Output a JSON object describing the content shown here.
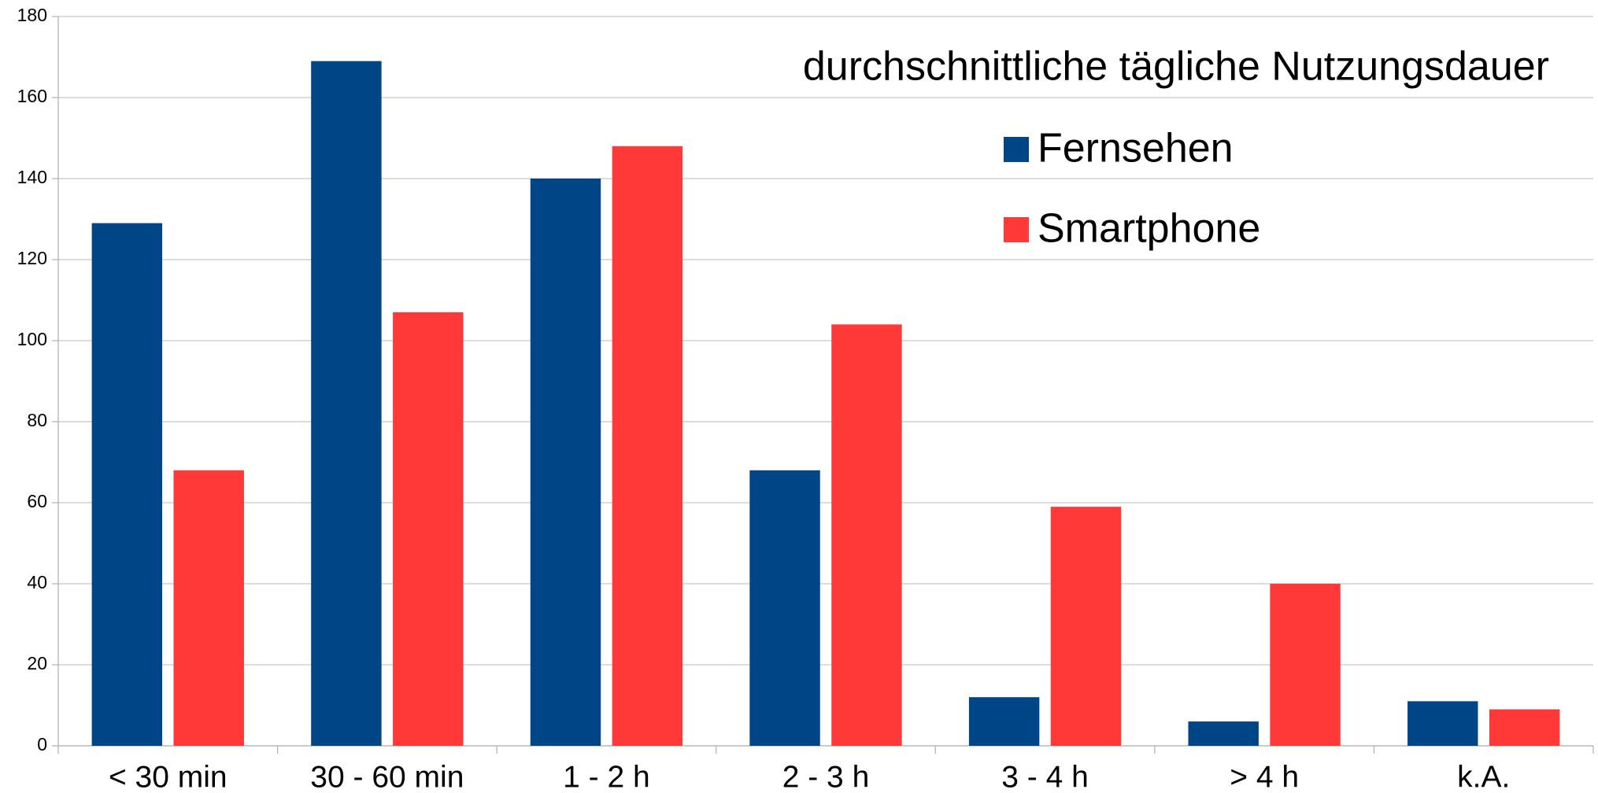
{
  "chart_data": {
    "type": "bar",
    "title": "durchschnittliche tägliche Nutzungsdauer",
    "categories": [
      "< 30 min",
      "30 - 60 min",
      "1 - 2 h",
      "2 - 3 h",
      "3 - 4 h",
      "> 4 h",
      "k.A."
    ],
    "series": [
      {
        "name": "Fernsehen",
        "color": "#004586",
        "values": [
          129,
          169,
          140,
          68,
          12,
          6,
          11
        ]
      },
      {
        "name": "Smartphone",
        "color": "#ff3838",
        "values": [
          68,
          107,
          148,
          104,
          59,
          40,
          9
        ]
      }
    ],
    "ylim": [
      0,
      180
    ],
    "yticks": [
      0,
      20,
      40,
      60,
      80,
      100,
      120,
      140,
      160,
      180
    ],
    "grid": true,
    "legend": "top-right"
  }
}
